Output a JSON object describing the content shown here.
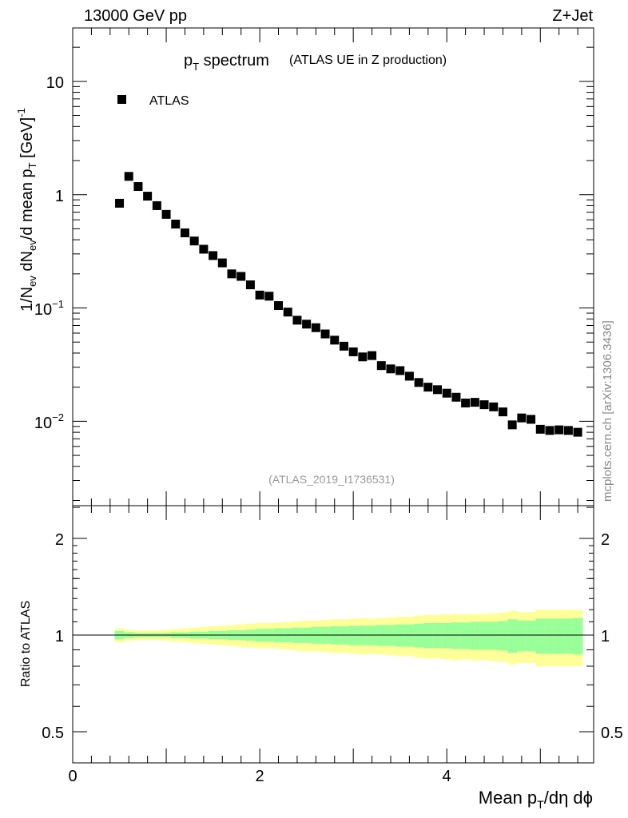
{
  "header": {
    "energy": "13000 GeV pp",
    "process": "Z+Jet"
  },
  "side_label": "mcplots.cern.ch [arXiv:1306.3436]",
  "chart_data": [
    {
      "type": "scatter",
      "title_main": "p",
      "title_sub": "T",
      "title_rest": " spectrum",
      "subtitle": "(ATLAS UE in Z production)",
      "analysis_id": "(ATLAS_2019_I1736531)",
      "legend": [
        {
          "name": "ATLAS",
          "marker": "square",
          "color": "#000000"
        }
      ],
      "legend_placement": "top-left",
      "yscale": "log",
      "xlim": [
        0,
        5.57
      ],
      "ylim": [
        0.0018,
        29.6
      ],
      "ylabel": "1/N_ev dN_ev/d mean p_T [GeV]^-1",
      "x_ticklabels": [
        "0",
        "2",
        "4"
      ],
      "y_ticklabels": [
        "10",
        "1",
        "10^-1",
        "10^-2"
      ],
      "series": [
        {
          "name": "ATLAS",
          "x": [
            0.5,
            0.6,
            0.7,
            0.8,
            0.9,
            1.0,
            1.1,
            1.2,
            1.3,
            1.4,
            1.5,
            1.6,
            1.7,
            1.8,
            1.9,
            2.0,
            2.1,
            2.2,
            2.3,
            2.4,
            2.5,
            2.6,
            2.7,
            2.8,
            2.9,
            3.0,
            3.1,
            3.2,
            3.3,
            3.4,
            3.5,
            3.6,
            3.7,
            3.8,
            3.9,
            4.0,
            4.1,
            4.2,
            4.3,
            4.4,
            4.5,
            4.6,
            4.7,
            4.8,
            4.9,
            5.0,
            5.1,
            5.2,
            5.3,
            5.4
          ],
          "y": [
            0.84,
            1.45,
            1.18,
            0.97,
            0.8,
            0.67,
            0.55,
            0.46,
            0.39,
            0.33,
            0.29,
            0.25,
            0.2,
            0.19,
            0.16,
            0.13,
            0.127,
            0.105,
            0.092,
            0.078,
            0.072,
            0.067,
            0.059,
            0.052,
            0.046,
            0.041,
            0.037,
            0.038,
            0.031,
            0.029,
            0.028,
            0.025,
            0.022,
            0.02,
            0.019,
            0.0177,
            0.0163,
            0.0145,
            0.0147,
            0.014,
            0.0134,
            0.0121,
            0.0093,
            0.0107,
            0.0104,
            0.0085,
            0.0083,
            0.0084,
            0.0083,
            0.008
          ]
        }
      ]
    },
    {
      "type": "area",
      "ylabel": "Ratio to ATLAS",
      "xlabel": "Mean p_T/dη dϕ",
      "yscale": "log",
      "xlim": [
        0,
        5.57
      ],
      "ylim": [
        0.4,
        2.53
      ],
      "x_ticklabels": [
        "0",
        "2",
        "4"
      ],
      "y_ticklabels": [
        "2",
        "1",
        "0.5"
      ],
      "bin_width": 0.1,
      "colors": {
        "inner": "#99ff99",
        "outer": "#ffff99",
        "line": "#000000"
      },
      "x": [
        0.5,
        0.6,
        0.7,
        0.8,
        0.9,
        1.0,
        1.1,
        1.2,
        1.3,
        1.4,
        1.5,
        1.6,
        1.7,
        1.8,
        1.9,
        2.0,
        2.1,
        2.2,
        2.3,
        2.4,
        2.5,
        2.6,
        2.7,
        2.8,
        2.9,
        3.0,
        3.1,
        3.2,
        3.3,
        3.4,
        3.5,
        3.6,
        3.7,
        3.8,
        3.9,
        4.0,
        4.1,
        4.2,
        4.3,
        4.4,
        4.5,
        4.6,
        4.7,
        4.8,
        4.9,
        5.0,
        5.1,
        5.2,
        5.3,
        5.4
      ],
      "inner_err": [
        0.03,
        0.02,
        0.015,
        0.015,
        0.015,
        0.015,
        0.02,
        0.02,
        0.025,
        0.025,
        0.03,
        0.03,
        0.035,
        0.035,
        0.04,
        0.045,
        0.045,
        0.05,
        0.05,
        0.055,
        0.055,
        0.06,
        0.06,
        0.065,
        0.065,
        0.07,
        0.07,
        0.07,
        0.075,
        0.075,
        0.08,
        0.08,
        0.085,
        0.09,
        0.09,
        0.09,
        0.095,
        0.095,
        0.1,
        0.1,
        0.1,
        0.105,
        0.12,
        0.11,
        0.11,
        0.125,
        0.125,
        0.125,
        0.125,
        0.13
      ],
      "outer_err": [
        0.05,
        0.04,
        0.035,
        0.035,
        0.035,
        0.04,
        0.045,
        0.05,
        0.055,
        0.06,
        0.065,
        0.07,
        0.075,
        0.08,
        0.085,
        0.09,
        0.09,
        0.095,
        0.1,
        0.105,
        0.11,
        0.11,
        0.115,
        0.12,
        0.12,
        0.125,
        0.13,
        0.125,
        0.13,
        0.135,
        0.14,
        0.14,
        0.15,
        0.155,
        0.155,
        0.16,
        0.165,
        0.16,
        0.165,
        0.165,
        0.17,
        0.175,
        0.19,
        0.18,
        0.18,
        0.2,
        0.2,
        0.2,
        0.2,
        0.2
      ]
    }
  ]
}
